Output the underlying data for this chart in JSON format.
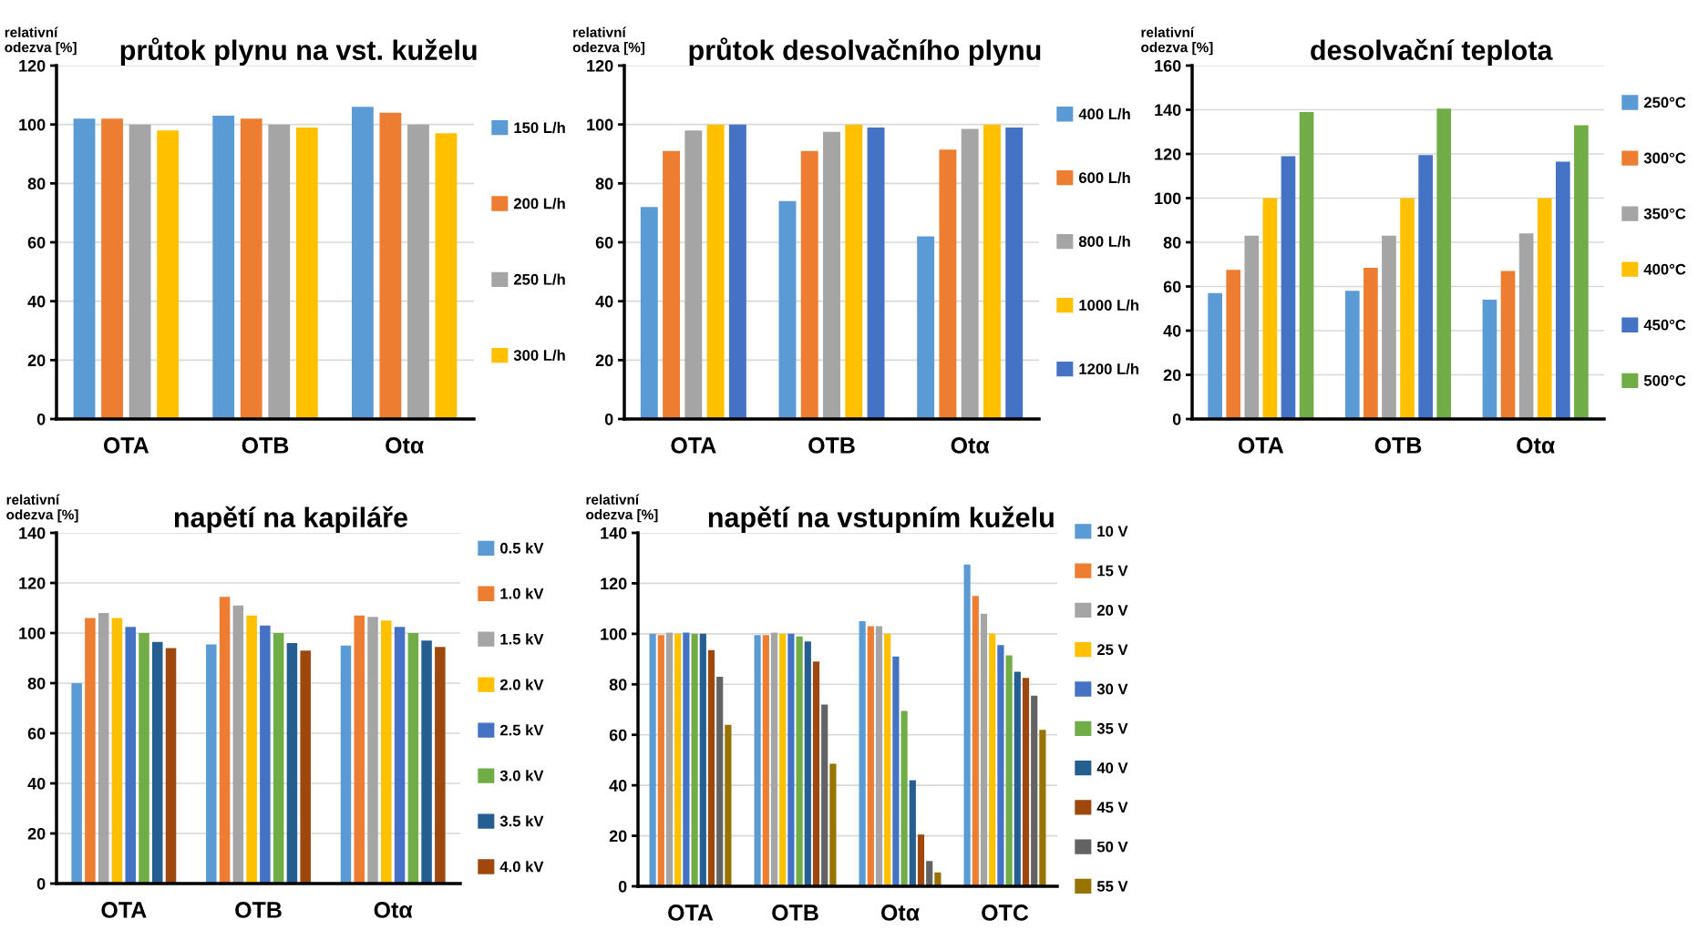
{
  "chart_data": [
    {
      "type": "bar",
      "title": "průtok plynu na vst. kuželu",
      "ylabel": "relativní\nodezva [%]",
      "categories": [
        "OTA",
        "OTB",
        "Otα"
      ],
      "ylim": [
        0,
        120
      ],
      "yticks": [
        0,
        20,
        40,
        60,
        80,
        100,
        120
      ],
      "grid": "y",
      "legend": "right",
      "series": [
        {
          "name": "150 L/h",
          "color": "#5b9bd5",
          "values": [
            102,
            103,
            106
          ]
        },
        {
          "name": "200 L/h",
          "color": "#ed7d31",
          "values": [
            102,
            102,
            104
          ]
        },
        {
          "name": "250 L/h",
          "color": "#a5a5a5",
          "values": [
            100,
            100,
            100
          ]
        },
        {
          "name": "300 L/h",
          "color": "#ffc000",
          "values": [
            98,
            99,
            97
          ]
        }
      ]
    },
    {
      "type": "bar",
      "title": "průtok desolvačního plynu",
      "ylabel": "relativní\nodezva [%]",
      "categories": [
        "OTA",
        "OTB",
        "Otα"
      ],
      "ylim": [
        0,
        120
      ],
      "yticks": [
        0,
        20,
        40,
        60,
        80,
        100,
        120
      ],
      "grid": "y",
      "legend": "right",
      "series": [
        {
          "name": "400 L/h",
          "color": "#5b9bd5",
          "values": [
            72,
            74,
            62
          ]
        },
        {
          "name": "600 L/h",
          "color": "#ed7d31",
          "values": [
            91,
            91,
            91.5
          ]
        },
        {
          "name": "800 L/h",
          "color": "#a5a5a5",
          "values": [
            98,
            97.5,
            98.5
          ]
        },
        {
          "name": "1000 L/h",
          "color": "#ffc000",
          "values": [
            100,
            100,
            100
          ]
        },
        {
          "name": "1200 L/h",
          "color": "#4472c4",
          "values": [
            100,
            99,
            99
          ]
        }
      ]
    },
    {
      "type": "bar",
      "title": "desolvační teplota",
      "ylabel": "relativní\nodezva [%]",
      "categories": [
        "OTA",
        "OTB",
        "Otα"
      ],
      "ylim": [
        0,
        160
      ],
      "yticks": [
        0,
        20,
        40,
        60,
        80,
        100,
        120,
        140,
        160
      ],
      "grid": "y",
      "legend": "right",
      "series": [
        {
          "name": "250°C",
          "color": "#5b9bd5",
          "values": [
            57,
            58,
            54
          ]
        },
        {
          "name": "300°C",
          "color": "#ed7d31",
          "values": [
            67.5,
            68.5,
            67
          ]
        },
        {
          "name": "350°C",
          "color": "#a5a5a5",
          "values": [
            83,
            83,
            84
          ]
        },
        {
          "name": "400°C",
          "color": "#ffc000",
          "values": [
            100,
            100,
            100
          ]
        },
        {
          "name": "450°C",
          "color": "#4472c4",
          "values": [
            119,
            119.5,
            116.5
          ]
        },
        {
          "name": "500°C",
          "color": "#70ad47",
          "values": [
            139,
            140.5,
            133
          ]
        }
      ]
    },
    {
      "type": "bar",
      "title": "napětí na kapiláře",
      "ylabel": "relativní\nodezva [%]",
      "categories": [
        "OTA",
        "OTB",
        "Otα"
      ],
      "ylim": [
        0,
        140
      ],
      "yticks": [
        0,
        20,
        40,
        60,
        80,
        100,
        120,
        140
      ],
      "grid": "y",
      "legend": "right",
      "series": [
        {
          "name": "0.5 kV",
          "color": "#5b9bd5",
          "values": [
            80,
            95.5,
            95
          ]
        },
        {
          "name": "1.0 kV",
          "color": "#ed7d31",
          "values": [
            106,
            114.5,
            107
          ]
        },
        {
          "name": "1.5 kV",
          "color": "#a5a5a5",
          "values": [
            108,
            111,
            106.5
          ]
        },
        {
          "name": "2.0 kV",
          "color": "#ffc000",
          "values": [
            106,
            107,
            105
          ]
        },
        {
          "name": "2.5 kV",
          "color": "#4472c4",
          "values": [
            102.5,
            103,
            102.5
          ]
        },
        {
          "name": "3.0 kV",
          "color": "#70ad47",
          "values": [
            100,
            100,
            100
          ]
        },
        {
          "name": "3.5 kV",
          "color": "#255e91",
          "values": [
            96.5,
            96,
            97
          ]
        },
        {
          "name": "4.0 kV",
          "color": "#9e480e",
          "values": [
            94,
            93,
            94.5
          ]
        }
      ]
    },
    {
      "type": "bar",
      "title": "napětí na vstupním kuželu",
      "ylabel": "relativní\nodezva [%]",
      "categories": [
        "OTA",
        "OTB",
        "Otα",
        "OTC"
      ],
      "ylim": [
        0,
        140
      ],
      "yticks": [
        0,
        20,
        40,
        60,
        80,
        100,
        120,
        140
      ],
      "grid": "y",
      "legend": "right",
      "series": [
        {
          "name": "10 V",
          "color": "#5b9bd5",
          "values": [
            100,
            99.5,
            105,
            127.5
          ]
        },
        {
          "name": "15 V",
          "color": "#ed7d31",
          "values": [
            99.5,
            99.5,
            103,
            115
          ]
        },
        {
          "name": "20 V",
          "color": "#a5a5a5",
          "values": [
            100.5,
            100.5,
            103,
            108
          ]
        },
        {
          "name": "25 V",
          "color": "#ffc000",
          "values": [
            100,
            100,
            100,
            100
          ]
        },
        {
          "name": "30 V",
          "color": "#4472c4",
          "values": [
            100.5,
            100,
            91,
            95.5
          ]
        },
        {
          "name": "35 V",
          "color": "#70ad47",
          "values": [
            100,
            99,
            69.5,
            91.5
          ]
        },
        {
          "name": "40 V",
          "color": "#255e91",
          "values": [
            100,
            97,
            42,
            85
          ]
        },
        {
          "name": "45 V",
          "color": "#9e480e",
          "values": [
            93.5,
            89,
            20.5,
            82.5
          ]
        },
        {
          "name": "50 V",
          "color": "#636363",
          "values": [
            83,
            72,
            10,
            75.5
          ]
        },
        {
          "name": "55 V",
          "color": "#997300",
          "values": [
            64,
            48.5,
            5.5,
            62
          ]
        }
      ]
    }
  ]
}
